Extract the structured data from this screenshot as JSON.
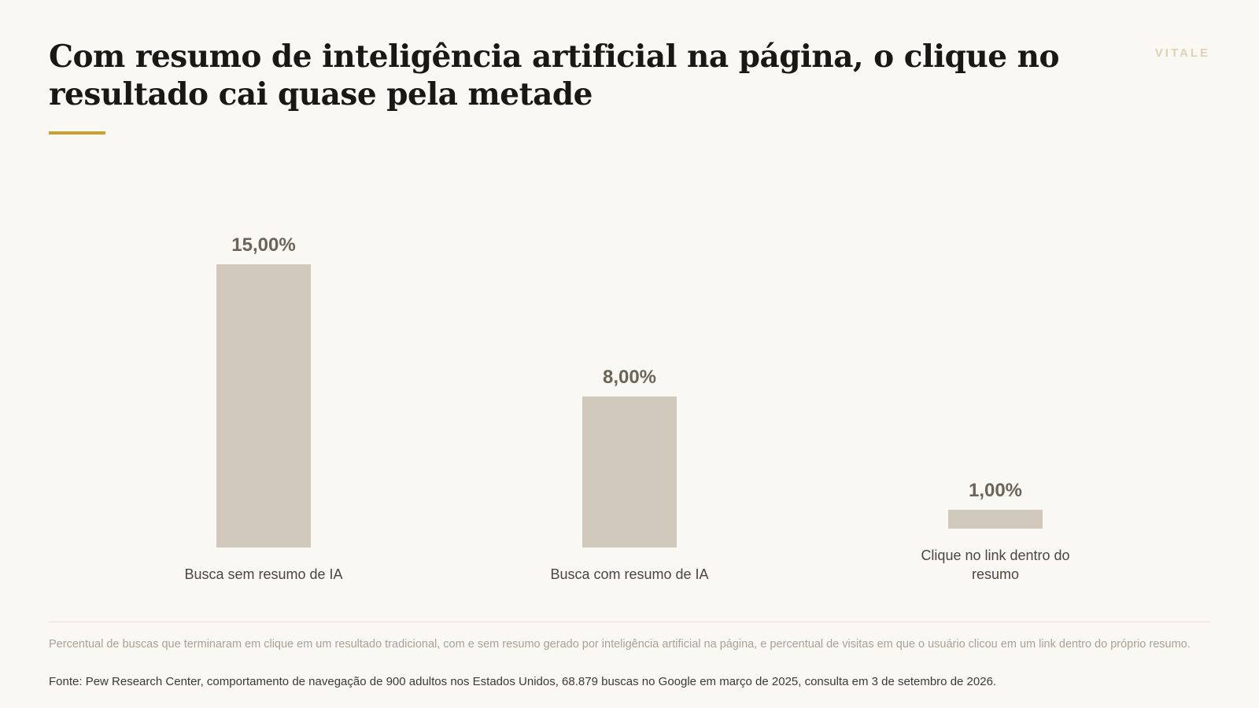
{
  "brand": "VITALE",
  "colors": {
    "background": "#faf8f3",
    "bar": "#d2c9bd",
    "accent_rule": "#c9a032",
    "value_label": "#6b645b"
  },
  "chart_data": {
    "type": "bar",
    "title": "Com resumo de inteligência artificial na página, o clique no resultado cai quase pela metade",
    "categories": [
      "Busca sem resumo de IA",
      "Busca com resumo de IA",
      "Clique no link dentro do resumo"
    ],
    "values": [
      15.0,
      8.0,
      1.0
    ],
    "value_labels": [
      "15,00%",
      "8,00%",
      "1,00%"
    ],
    "unit": "%",
    "xlabel": "",
    "ylabel": "",
    "ylim": [
      0,
      15
    ],
    "grid": false,
    "legend": "none"
  },
  "footer": {
    "note": "Percentual de buscas que terminaram em clique em um resultado tradicional, com e sem resumo gerado por inteligência artificial na página, e percentual de visitas em que o usuário clicou em um link dentro do próprio resumo.",
    "source": "Fonte: Pew Research Center, comportamento de navegação de 900 adultos nos Estados Unidos, 68.879 buscas no Google em março de 2025, consulta em 3 de setembro de 2026."
  }
}
